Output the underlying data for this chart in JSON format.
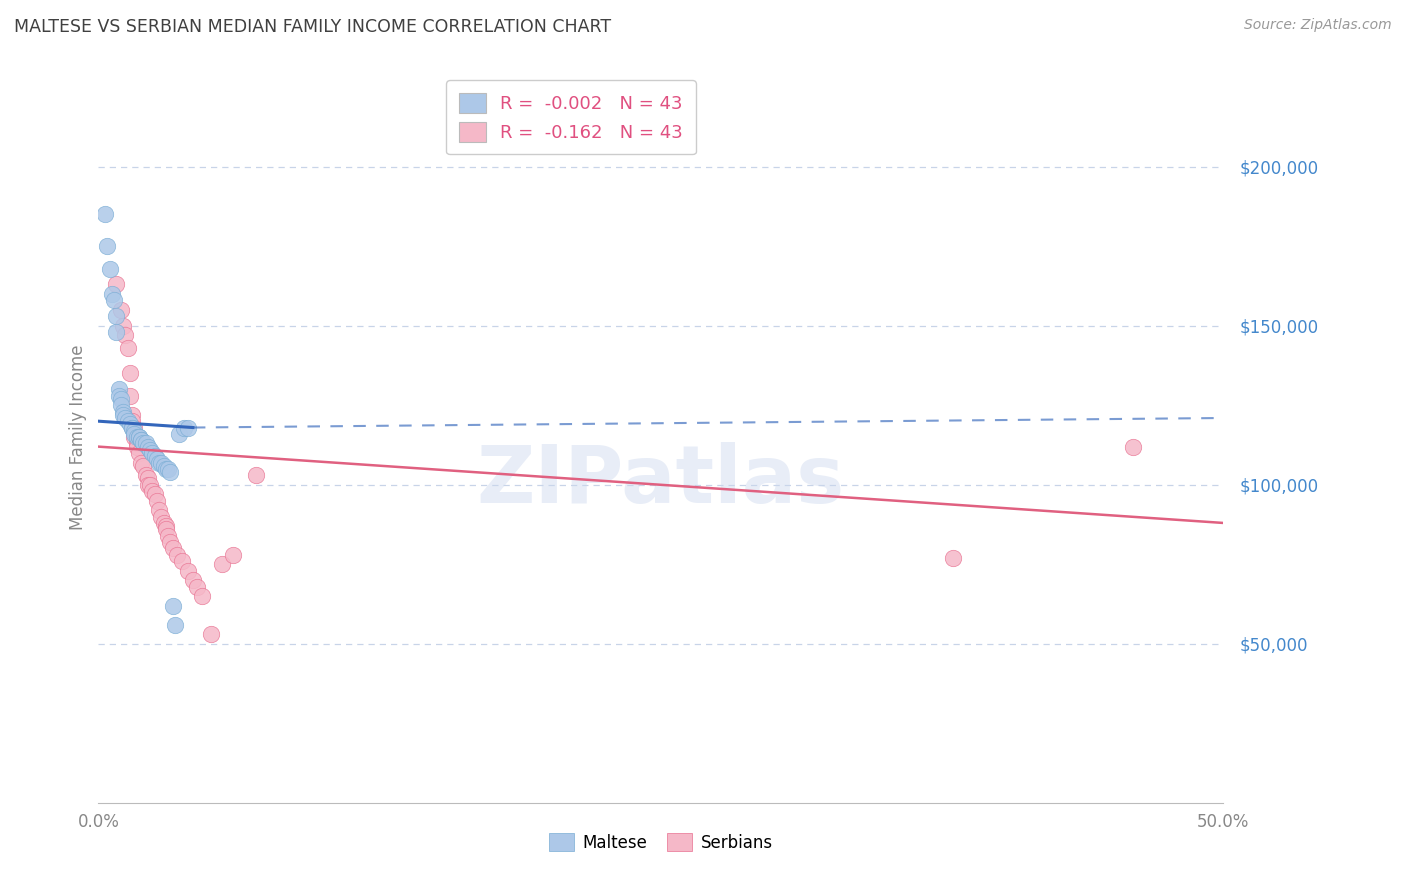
{
  "title": "MALTESE VS SERBIAN MEDIAN FAMILY INCOME CORRELATION CHART",
  "source": "Source: ZipAtlas.com",
  "ylabel": "Median Family Income",
  "ylim": [
    0,
    230000
  ],
  "xlim": [
    0.0,
    0.5
  ],
  "watermark": "ZIPatlas",
  "legend_maltese_label": "R =  -0.002   N = 43",
  "legend_serbian_label": "R =  -0.162   N = 43",
  "maltese_color": "#adc8e8",
  "maltese_edge": "#7aadd4",
  "serbian_color": "#f5b8c8",
  "serbian_edge": "#e87090",
  "maltese_trend_color": "#3366bb",
  "serbian_trend_color": "#e06080",
  "background_color": "#ffffff",
  "grid_color": "#c8d4e8",
  "title_color": "#404040",
  "axis_label_color": "#888888",
  "ytick_color": "#4488cc",
  "legend_text_color1": "#e05080",
  "legend_text_color2": "#4488cc",
  "maltese_x": [
    0.003,
    0.004,
    0.005,
    0.006,
    0.007,
    0.008,
    0.008,
    0.009,
    0.009,
    0.01,
    0.01,
    0.011,
    0.011,
    0.012,
    0.013,
    0.014,
    0.015,
    0.015,
    0.016,
    0.016,
    0.017,
    0.018,
    0.018,
    0.019,
    0.019,
    0.02,
    0.021,
    0.022,
    0.023,
    0.024,
    0.025,
    0.026,
    0.027,
    0.028,
    0.029,
    0.03,
    0.031,
    0.032,
    0.033,
    0.034,
    0.036,
    0.038,
    0.04
  ],
  "maltese_y": [
    185000,
    175000,
    168000,
    160000,
    158000,
    153000,
    148000,
    130000,
    128000,
    127000,
    125000,
    123000,
    122000,
    121000,
    120000,
    119000,
    118000,
    118000,
    117000,
    116000,
    115000,
    115000,
    115000,
    114000,
    114000,
    113000,
    113000,
    112000,
    111000,
    110000,
    109000,
    108000,
    107000,
    107000,
    106000,
    105000,
    105000,
    104000,
    62000,
    56000,
    116000,
    118000,
    118000
  ],
  "serbian_x": [
    0.008,
    0.01,
    0.011,
    0.012,
    0.013,
    0.014,
    0.014,
    0.015,
    0.015,
    0.016,
    0.016,
    0.017,
    0.017,
    0.018,
    0.019,
    0.02,
    0.021,
    0.022,
    0.022,
    0.023,
    0.024,
    0.025,
    0.026,
    0.027,
    0.028,
    0.029,
    0.03,
    0.03,
    0.031,
    0.032,
    0.033,
    0.035,
    0.037,
    0.04,
    0.042,
    0.044,
    0.046,
    0.05,
    0.055,
    0.06,
    0.07,
    0.38,
    0.46
  ],
  "serbian_y": [
    163000,
    155000,
    150000,
    147000,
    143000,
    135000,
    128000,
    122000,
    120000,
    118000,
    115000,
    113000,
    112000,
    110000,
    107000,
    106000,
    103000,
    102000,
    100000,
    100000,
    98000,
    97000,
    95000,
    92000,
    90000,
    88000,
    87000,
    86000,
    84000,
    82000,
    80000,
    78000,
    76000,
    73000,
    70000,
    68000,
    65000,
    53000,
    75000,
    78000,
    103000,
    77000,
    112000
  ],
  "maltese_trend_x0": 0.0,
  "maltese_trend_x1": 0.042,
  "maltese_trend_y0": 120000,
  "maltese_trend_y1": 118000,
  "maltese_trend_dash_x0": 0.042,
  "maltese_trend_dash_x1": 0.5,
  "maltese_trend_dash_y0": 118000,
  "maltese_trend_dash_y1": 121000,
  "serbian_trend_x0": 0.0,
  "serbian_trend_x1": 0.5,
  "serbian_trend_y0": 112000,
  "serbian_trend_y1": 88000
}
